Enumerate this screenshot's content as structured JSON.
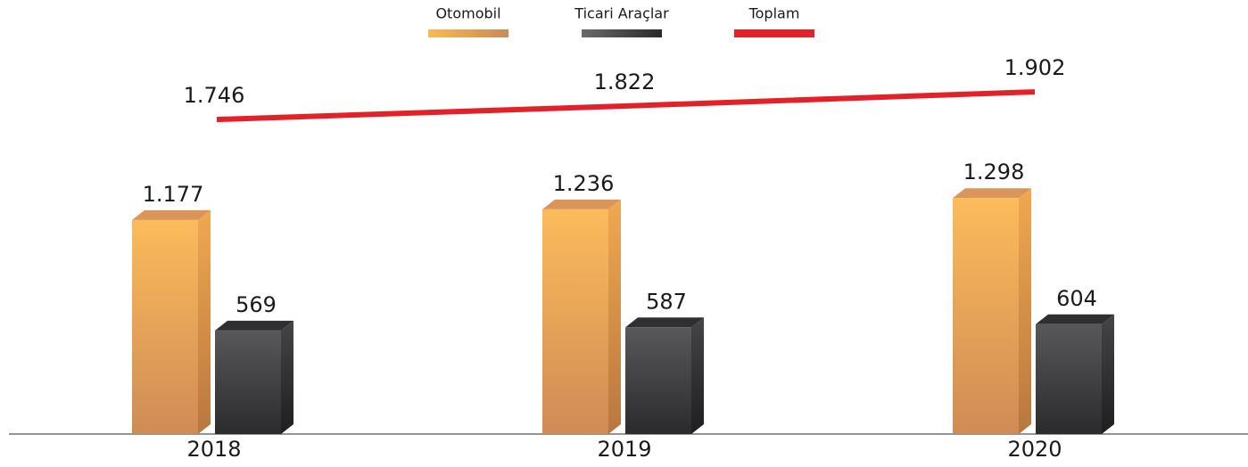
{
  "chart_data": {
    "type": "bar",
    "categories": [
      "2018",
      "2019",
      "2020"
    ],
    "series": [
      {
        "name": "Otomobil",
        "color": "#f2a95a",
        "values": [
          1177,
          1236,
          1298
        ],
        "value_labels": [
          "1.177",
          "1.236",
          "1.298"
        ]
      },
      {
        "name": "Ticari Araçlar",
        "color": "#3a3a3c",
        "values": [
          569,
          587,
          604
        ],
        "value_labels": [
          "569",
          "587",
          "604"
        ]
      },
      {
        "name": "Toplam",
        "type": "line",
        "color": "#e32128",
        "values": [
          1746,
          1822,
          1902
        ],
        "value_labels": [
          "1.746",
          "1.822",
          "1.902"
        ]
      }
    ]
  }
}
